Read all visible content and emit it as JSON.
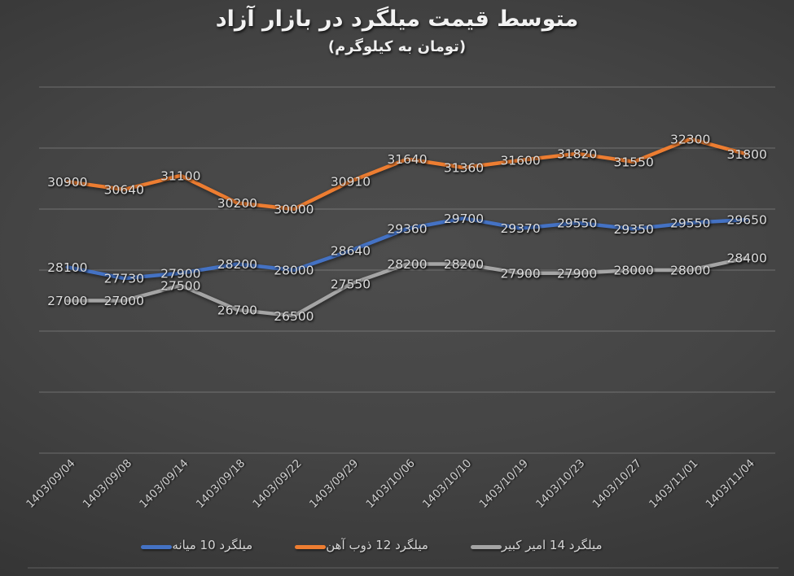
{
  "chart_data": {
    "type": "line",
    "title": "متوسط قیمت میلگرد در بازار آزاد",
    "subtitle": "(تومان به کیلوگرم)",
    "categories": [
      "1403/09/04",
      "1403/09/08",
      "1403/09/14",
      "1403/09/18",
      "1403/09/22",
      "1403/09/29",
      "1403/10/06",
      "1403/10/10",
      "1403/10/19",
      "1403/10/23",
      "1403/10/27",
      "1403/11/01",
      "1403/11/04"
    ],
    "series": [
      {
        "name": "میلگرد 10 میانه",
        "color": "#4472C4",
        "values": [
          28100,
          27730,
          27900,
          28200,
          28000,
          28640,
          29360,
          29700,
          29370,
          29550,
          29350,
          29550,
          29650
        ]
      },
      {
        "name": "میلگرد 12 ذوب آهن",
        "color": "#ED7D31",
        "values": [
          30900,
          30640,
          31100,
          30200,
          30000,
          30910,
          31640,
          31360,
          31600,
          31820,
          31550,
          32300,
          31800
        ]
      },
      {
        "name": "میلگرد 14 امیر کبیر",
        "color": "#A5A5A5",
        "values": [
          27000,
          27000,
          27500,
          26700,
          26500,
          27550,
          28200,
          28200,
          27900,
          27900,
          28000,
          28000,
          28400
        ]
      }
    ],
    "xlabel": "",
    "ylabel": "",
    "ylim": [
      22000,
      34000
    ],
    "grid_step": 2000,
    "grid": true,
    "y_axis_labels_visible": false,
    "data_labels": "center",
    "x_label_rotation_deg": -45,
    "legend_position": "bottom",
    "background": "dark-radial-gradient",
    "colors": {
      "background_center": "#4d4d4d",
      "background_edge": "#262626",
      "gridline": "rgba(255,255,255,0.24)",
      "label_text": "#dcdcdc",
      "axis_text": "#cfcfcf",
      "title_text": "#f2f2f2"
    }
  }
}
